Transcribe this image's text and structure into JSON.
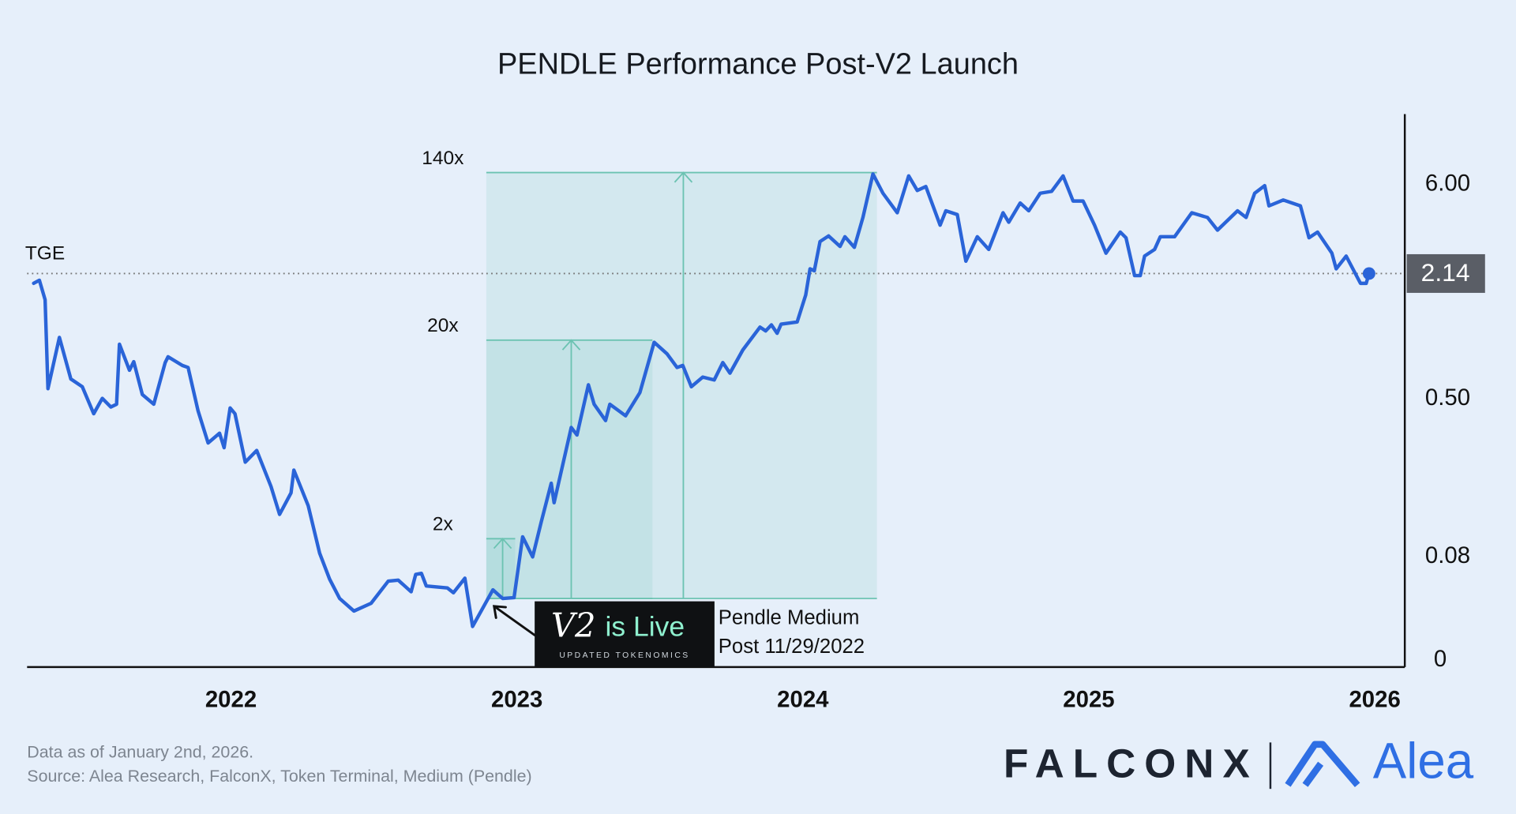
{
  "chart_data": {
    "type": "line",
    "title": "PENDLE Performance Post-V2 Launch",
    "color": "#2a64d8",
    "log_scale": true,
    "grid": false,
    "xlim": [
      2021.287,
      2026.105
    ],
    "xticks": [
      2022,
      2023,
      2024,
      2025,
      2026
    ],
    "ylim": [
      0.0223,
      13.6
    ],
    "yticks": [
      {
        "value": 0.0223,
        "label": "0"
      },
      0.08,
      {
        "value": 0.5,
        "label": "0.50"
      },
      {
        "value": 6,
        "label": "6.00"
      }
    ],
    "x": [
      2021.31,
      2021.33,
      2021.35,
      2021.36,
      2021.4,
      2021.44,
      2021.48,
      2021.52,
      2021.55,
      2021.58,
      2021.6,
      2021.61,
      2021.645,
      2021.66,
      2021.69,
      2021.73,
      2021.77,
      2021.78,
      2021.83,
      2021.85,
      2021.885,
      2021.92,
      2021.96,
      2021.976,
      2021.997,
      2022.014,
      2022.05,
      2022.09,
      2022.14,
      2022.17,
      2022.21,
      2022.22,
      2022.27,
      2022.31,
      2022.345,
      2022.38,
      2022.43,
      2022.49,
      2022.55,
      2022.585,
      2022.63,
      2022.646,
      2022.666,
      2022.683,
      2022.757,
      2022.778,
      2022.818,
      2022.845,
      2022.916,
      2022.95,
      2022.99,
      2023.02,
      2023.055,
      2023.085,
      2023.12,
      2023.13,
      2023.19,
      2023.21,
      2023.25,
      2023.27,
      2023.31,
      2023.325,
      2023.38,
      2023.43,
      2023.48,
      2023.525,
      2023.56,
      2023.58,
      2023.61,
      2023.65,
      2023.69,
      2023.72,
      2023.745,
      2023.79,
      2023.85,
      2023.87,
      2023.89,
      2023.91,
      2023.924,
      2023.98,
      2024.01,
      2024.025,
      2024.04,
      2024.06,
      2024.09,
      2024.13,
      2024.147,
      2024.18,
      2024.21,
      2024.245,
      2024.28,
      2024.33,
      2024.37,
      2024.4,
      2024.43,
      2024.48,
      2024.5,
      2024.54,
      2024.57,
      2024.61,
      2024.65,
      2024.7,
      2024.72,
      2024.76,
      2024.79,
      2024.83,
      2024.87,
      2024.91,
      2024.945,
      2024.98,
      2025.02,
      2025.06,
      2025.11,
      2025.13,
      2025.16,
      2025.18,
      2025.195,
      2025.23,
      2025.25,
      2025.3,
      2025.36,
      2025.415,
      2025.45,
      2025.52,
      2025.55,
      2025.58,
      2025.615,
      2025.63,
      2025.68,
      2025.74,
      2025.77,
      2025.8,
      2025.85,
      2025.865,
      2025.9,
      2025.95,
      2025.97,
      2025.98
    ],
    "values": [
      1.91,
      1.98,
      1.58,
      0.563,
      1.02,
      0.63,
      0.576,
      0.421,
      0.503,
      0.455,
      0.47,
      0.943,
      0.697,
      0.77,
      0.526,
      0.47,
      0.762,
      0.815,
      0.737,
      0.72,
      0.435,
      0.3,
      0.336,
      0.284,
      0.45,
      0.421,
      0.24,
      0.275,
      0.181,
      0.131,
      0.168,
      0.219,
      0.145,
      0.0836,
      0.0618,
      0.0494,
      0.0427,
      0.0467,
      0.0604,
      0.0611,
      0.0534,
      0.0653,
      0.0661,
      0.0571,
      0.0558,
      0.0528,
      0.0625,
      0.0357,
      0.0546,
      0.0494,
      0.0499,
      0.101,
      0.08,
      0.12,
      0.188,
      0.15,
      0.359,
      0.329,
      0.589,
      0.47,
      0.389,
      0.47,
      0.411,
      0.538,
      0.964,
      0.843,
      0.72,
      0.737,
      0.576,
      0.644,
      0.623,
      0.762,
      0.674,
      0.882,
      1.15,
      1.1,
      1.18,
      1.07,
      1.19,
      1.22,
      1.67,
      2.26,
      2.21,
      3.1,
      3.31,
      2.93,
      3.28,
      2.9,
      4.1,
      6.79,
      5.43,
      4.33,
      6.64,
      5.61,
      5.87,
      3.75,
      4.43,
      4.24,
      2.47,
      3.28,
      2.83,
      4.33,
      3.88,
      4.85,
      4.43,
      5.43,
      5.55,
      6.64,
      4.96,
      4.96,
      3.75,
      2.71,
      3.46,
      3.24,
      2.09,
      2.09,
      2.62,
      2.83,
      3.28,
      3.28,
      4.33,
      4.1,
      3.54,
      4.43,
      4.1,
      5.43,
      5.93,
      4.69,
      5.02,
      4.69,
      3.24,
      3.46,
      2.71,
      2.26,
      2.62,
      1.91,
      1.91,
      2.14
    ],
    "tge": {
      "label": "TGE",
      "value": 2.14
    },
    "multiples": [
      {
        "label": "140x",
        "x_start": 2022.893,
        "x_end": 2024.259,
        "arrow_x": 2023.582,
        "y_low": 0.0494,
        "y_high": 6.9
      },
      {
        "label": "20x",
        "x_start": 2022.893,
        "x_end": 2023.474,
        "arrow_x": 2023.19,
        "y_low": 0.0494,
        "y_high": 0.988
      },
      {
        "label": "2x",
        "x_start": 2022.893,
        "x_end": 2022.994,
        "arrow_x": 2022.95,
        "y_low": 0.0494,
        "y_high": 0.0988
      }
    ],
    "callout": {
      "x": 2022.91,
      "y": 0.0494,
      "badge_main": "V2",
      "badge_rest": "is Live",
      "badge_sub": "UPDATED TOKENOMICS",
      "text": [
        "Pendle Medium",
        "Post 11/29/2022"
      ]
    }
  },
  "footer": {
    "note": "Data as of January 2nd, 2026.",
    "source": "Source: Alea Research, FalconX, Token Terminal, Medium (Pendle)"
  },
  "logos": [
    "FALCONX",
    "Alea"
  ]
}
